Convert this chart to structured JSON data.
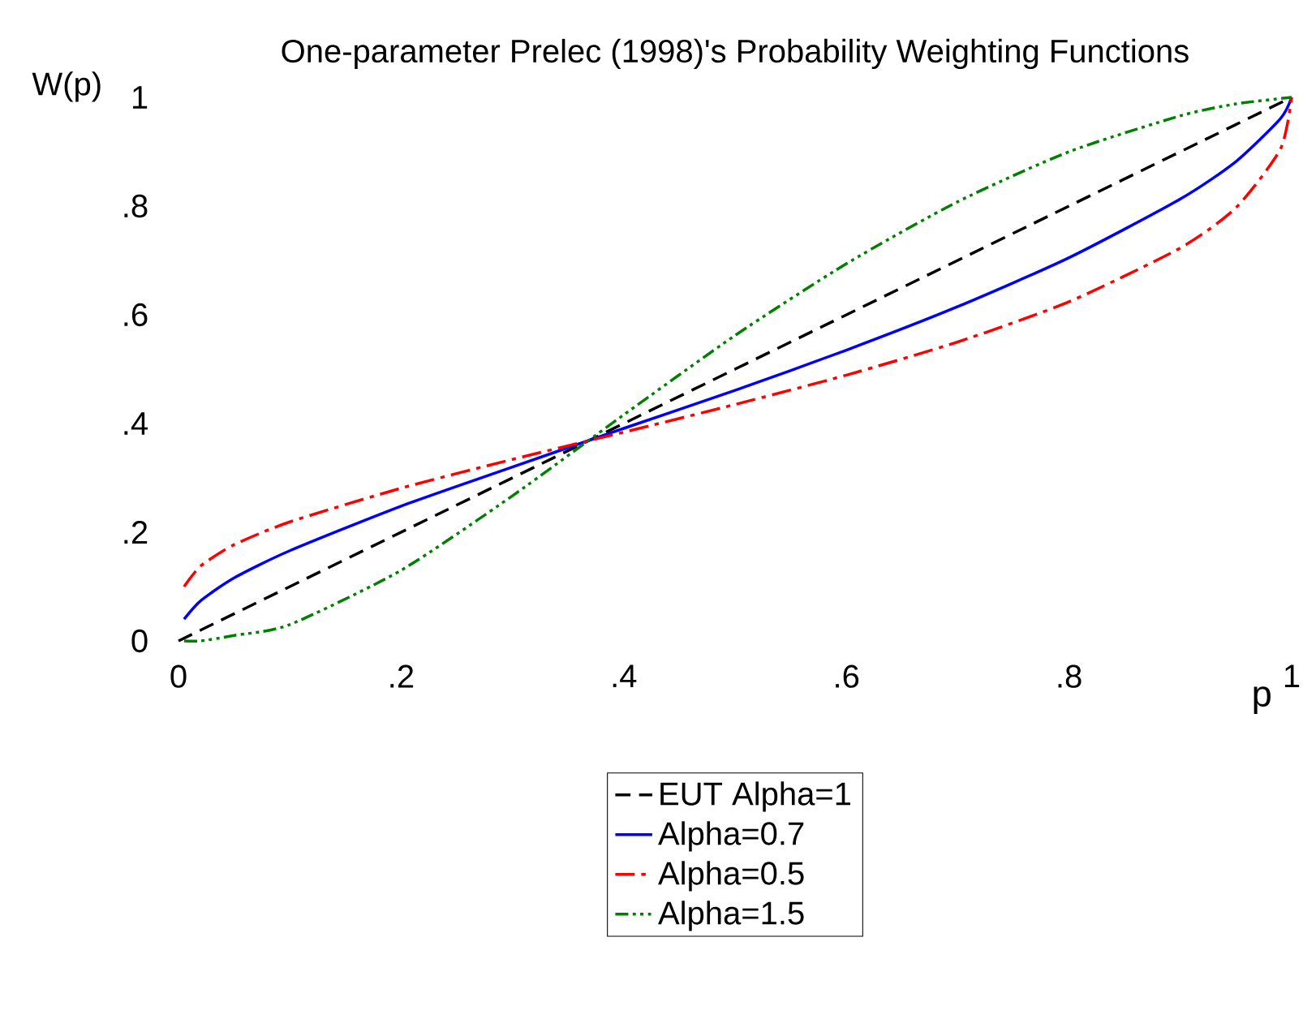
{
  "chart_data": {
    "type": "line",
    "title": "One-parameter Prelec (1998)'s Probability Weighting Functions",
    "xlabel": "p",
    "ylabel": "W(p)",
    "xlim": [
      0,
      1
    ],
    "ylim": [
      0,
      1
    ],
    "xticks": [
      0,
      {
        "value": 0.2,
        "label": ".2"
      },
      {
        "value": 0.4,
        "label": ".4"
      },
      {
        "value": 0.6,
        "label": ".6"
      },
      {
        "value": 0.8,
        "label": ".8"
      },
      1
    ],
    "yticks": [
      0,
      {
        "value": 0.2,
        "label": ".2"
      },
      {
        "value": 0.4,
        "label": ".4"
      },
      {
        "value": 0.6,
        "label": ".6"
      },
      {
        "value": 0.8,
        "label": ".8"
      },
      1
    ],
    "legend": "bottom",
    "grid": false,
    "marker": "none",
    "series": [
      {
        "name": "EUT   Alpha=1",
        "color": "#000000",
        "line_style": "dashed",
        "x": [
          0,
          1
        ],
        "values": [
          0,
          1
        ]
      },
      {
        "name": "Alpha=0.7",
        "color": "#0000ff",
        "line_style": "solid",
        "x": [
          0.005,
          0.02,
          0.05,
          0.1,
          0.2,
          0.3,
          0.4,
          0.5,
          0.6,
          0.7,
          0.8,
          0.9,
          0.95,
          0.99,
          1
        ],
        "values": [
          0.04,
          0.074,
          0.116,
          0.166,
          0.248,
          0.32,
          0.391,
          0.461,
          0.535,
          0.615,
          0.705,
          0.813,
          0.882,
          0.961,
          1
        ]
      },
      {
        "name": "Alpha=0.5",
        "color": "#ff0000",
        "line_style": "dashdot",
        "x": [
          0.005,
          0.02,
          0.05,
          0.1,
          0.2,
          0.3,
          0.4,
          0.5,
          0.6,
          0.7,
          0.8,
          0.9,
          0.95,
          0.99,
          1
        ],
        "values": [
          0.1,
          0.138,
          0.177,
          0.219,
          0.281,
          0.334,
          0.384,
          0.435,
          0.489,
          0.55,
          0.624,
          0.723,
          0.797,
          0.905,
          1
        ]
      },
      {
        "name": "Alpha=1.5",
        "color": "#008000",
        "line_style": "dashdotdotted",
        "x": [
          0.005,
          0.02,
          0.05,
          0.1,
          0.2,
          0.3,
          0.4,
          0.5,
          0.6,
          0.7,
          0.8,
          0.9,
          0.95,
          1
        ],
        "values": [
          0,
          0,
          0.01,
          0.03,
          0.13,
          0.267,
          0.416,
          0.562,
          0.694,
          0.808,
          0.9,
          0.966,
          0.988,
          1
        ]
      }
    ]
  }
}
